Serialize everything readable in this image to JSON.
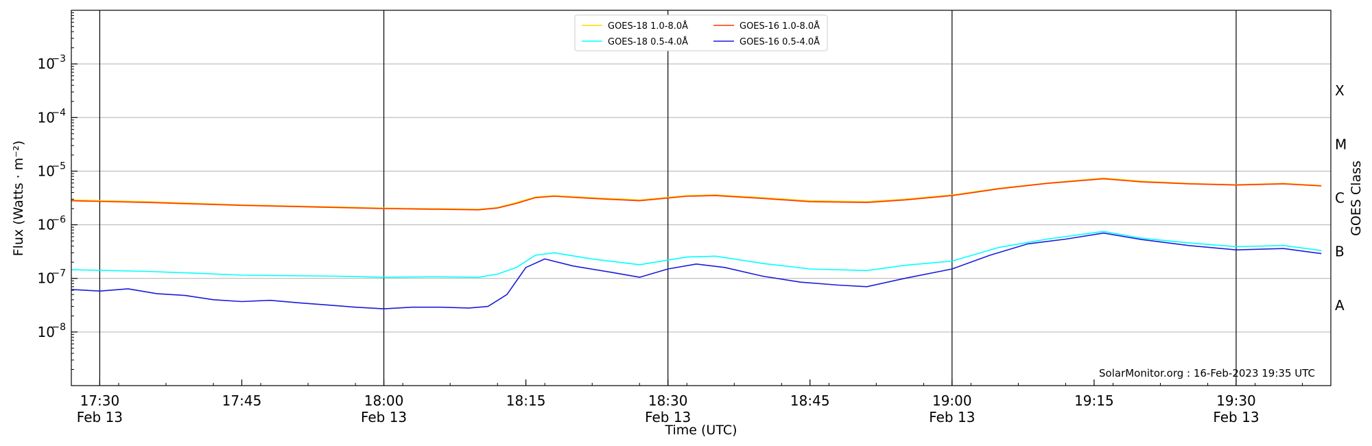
{
  "chart_data": {
    "type": "line",
    "xlabel": "Time (UTC)",
    "ylabel": "Flux (Watts · m⁻²)",
    "right_label": "GOES Class",
    "y_scale": "log",
    "ylim": [
      1e-09,
      0.01
    ],
    "xlim": [
      "2023-02-13T17:27",
      "2023-02-13T19:40"
    ],
    "y_ticks": [
      {
        "value": 1e-08,
        "base": "10",
        "exp": "−8"
      },
      {
        "value": 1e-07,
        "base": "10",
        "exp": "−7"
      },
      {
        "value": 1e-06,
        "base": "10",
        "exp": "−6"
      },
      {
        "value": 1e-05,
        "base": "10",
        "exp": "−5"
      },
      {
        "value": 0.0001,
        "base": "10",
        "exp": "−4"
      },
      {
        "value": 0.001,
        "base": "10",
        "exp": "−3"
      }
    ],
    "x_ticks": [
      {
        "time": "2023-02-13T17:30",
        "label": "17:30",
        "sublabel": "Feb 13",
        "vline": true
      },
      {
        "time": "2023-02-13T17:45",
        "label": "17:45",
        "sublabel": "",
        "vline": false
      },
      {
        "time": "2023-02-13T18:00",
        "label": "18:00",
        "sublabel": "Feb 13",
        "vline": true
      },
      {
        "time": "2023-02-13T18:15",
        "label": "18:15",
        "sublabel": "",
        "vline": false
      },
      {
        "time": "2023-02-13T18:30",
        "label": "18:30",
        "sublabel": "Feb 13",
        "vline": true
      },
      {
        "time": "2023-02-13T18:45",
        "label": "18:45",
        "sublabel": "",
        "vline": false
      },
      {
        "time": "2023-02-13T19:00",
        "label": "19:00",
        "sublabel": "Feb 13",
        "vline": true
      },
      {
        "time": "2023-02-13T19:15",
        "label": "19:15",
        "sublabel": "",
        "vline": false
      },
      {
        "time": "2023-02-13T19:30",
        "label": "19:30",
        "sublabel": "Feb 13",
        "vline": true
      }
    ],
    "goes_classes": [
      {
        "label": "A",
        "value": 3.16e-08
      },
      {
        "label": "B",
        "value": 3.16e-07
      },
      {
        "label": "C",
        "value": 3.16e-06
      },
      {
        "label": "M",
        "value": 3.16e-05
      },
      {
        "label": "X",
        "value": 0.000316
      }
    ],
    "grid": true,
    "legend_position": "top-center",
    "annotation": "SolarMonitor.org : 16-Feb-2023 19:35 UTC",
    "series": [
      {
        "name": "GOES-18 1.0-8.0Å",
        "color": "#ffd700",
        "x": [
          "2023-02-13T17:27",
          "2023-02-13T17:35",
          "2023-02-13T17:45",
          "2023-02-13T17:55",
          "2023-02-13T18:00",
          "2023-02-13T18:05",
          "2023-02-13T18:10",
          "2023-02-13T18:12",
          "2023-02-13T18:14",
          "2023-02-13T18:16",
          "2023-02-13T18:18",
          "2023-02-13T18:22",
          "2023-02-13T18:27",
          "2023-02-13T18:32",
          "2023-02-13T18:35",
          "2023-02-13T18:40",
          "2023-02-13T18:45",
          "2023-02-13T18:51",
          "2023-02-13T18:55",
          "2023-02-13T19:00",
          "2023-02-13T19:05",
          "2023-02-13T19:10",
          "2023-02-13T19:16",
          "2023-02-13T19:20",
          "2023-02-13T19:25",
          "2023-02-13T19:30",
          "2023-02-13T19:35",
          "2023-02-13T19:39"
        ],
        "y": [
          2.9e-06,
          2.7e-06,
          2.35e-06,
          2.15e-06,
          2.05e-06,
          2e-06,
          1.95e-06,
          2.1e-06,
          2.6e-06,
          3.3e-06,
          3.5e-06,
          3.2e-06,
          2.9e-06,
          3.5e-06,
          3.6e-06,
          3.2e-06,
          2.8e-06,
          2.7e-06,
          3e-06,
          3.6e-06,
          4.8e-06,
          6e-06,
          7.4e-06,
          6.5e-06,
          5.9e-06,
          5.6e-06,
          5.9e-06,
          5.4e-06
        ]
      },
      {
        "name": "GOES-18 0.5-4.0Å",
        "color": "#00ffff",
        "x": [
          "2023-02-13T17:27",
          "2023-02-13T17:35",
          "2023-02-13T17:40",
          "2023-02-13T17:45",
          "2023-02-13T17:55",
          "2023-02-13T18:00",
          "2023-02-13T18:05",
          "2023-02-13T18:10",
          "2023-02-13T18:12",
          "2023-02-13T18:14",
          "2023-02-13T18:16",
          "2023-02-13T18:18",
          "2023-02-13T18:22",
          "2023-02-13T18:27",
          "2023-02-13T18:32",
          "2023-02-13T18:35",
          "2023-02-13T18:40",
          "2023-02-13T18:45",
          "2023-02-13T18:51",
          "2023-02-13T18:55",
          "2023-02-13T19:00",
          "2023-02-13T19:05",
          "2023-02-13T19:10",
          "2023-02-13T19:16",
          "2023-02-13T19:20",
          "2023-02-13T19:25",
          "2023-02-13T19:30",
          "2023-02-13T19:35",
          "2023-02-13T19:39"
        ],
        "y": [
          1.45e-07,
          1.35e-07,
          1.25e-07,
          1.15e-07,
          1.1e-07,
          1.05e-07,
          1.07e-07,
          1.05e-07,
          1.2e-07,
          1.6e-07,
          2.7e-07,
          3e-07,
          2.3e-07,
          1.8e-07,
          2.5e-07,
          2.6e-07,
          1.9e-07,
          1.5e-07,
          1.4e-07,
          1.75e-07,
          2.1e-07,
          3.8e-07,
          5.4e-07,
          7.5e-07,
          5.6e-07,
          4.6e-07,
          3.9e-07,
          4.1e-07,
          3.3e-07
        ]
      },
      {
        "name": "GOES-16 1.0-8.0Å",
        "color": "#ff3300",
        "x": [
          "2023-02-13T17:27",
          "2023-02-13T17:35",
          "2023-02-13T17:45",
          "2023-02-13T17:55",
          "2023-02-13T18:00",
          "2023-02-13T18:05",
          "2023-02-13T18:10",
          "2023-02-13T18:12",
          "2023-02-13T18:14",
          "2023-02-13T18:16",
          "2023-02-13T18:18",
          "2023-02-13T18:22",
          "2023-02-13T18:27",
          "2023-02-13T18:32",
          "2023-02-13T18:35",
          "2023-02-13T18:40",
          "2023-02-13T18:45",
          "2023-02-13T18:51",
          "2023-02-13T18:55",
          "2023-02-13T19:00",
          "2023-02-13T19:05",
          "2023-02-13T19:10",
          "2023-02-13T19:16",
          "2023-02-13T19:20",
          "2023-02-13T19:25",
          "2023-02-13T19:30",
          "2023-02-13T19:35",
          "2023-02-13T19:39"
        ],
        "y": [
          2.8e-06,
          2.6e-06,
          2.3e-06,
          2.1e-06,
          2e-06,
          1.95e-06,
          1.9e-06,
          2.05e-06,
          2.5e-06,
          3.2e-06,
          3.4e-06,
          3.1e-06,
          2.8e-06,
          3.4e-06,
          3.5e-06,
          3.1e-06,
          2.7e-06,
          2.6e-06,
          2.9e-06,
          3.5e-06,
          4.7e-06,
          5.9e-06,
          7.2e-06,
          6.3e-06,
          5.8e-06,
          5.5e-06,
          5.8e-06,
          5.3e-06
        ]
      },
      {
        "name": "GOES-16 0.5-4.0Å",
        "color": "#1a1adc",
        "x": [
          "2023-02-13T17:27",
          "2023-02-13T17:30",
          "2023-02-13T17:33",
          "2023-02-13T17:36",
          "2023-02-13T17:39",
          "2023-02-13T17:42",
          "2023-02-13T17:45",
          "2023-02-13T17:48",
          "2023-02-13T17:51",
          "2023-02-13T17:54",
          "2023-02-13T17:57",
          "2023-02-13T18:00",
          "2023-02-13T18:03",
          "2023-02-13T18:06",
          "2023-02-13T18:09",
          "2023-02-13T18:11",
          "2023-02-13T18:13",
          "2023-02-13T18:15",
          "2023-02-13T18:17",
          "2023-02-13T18:20",
          "2023-02-13T18:24",
          "2023-02-13T18:27",
          "2023-02-13T18:30",
          "2023-02-13T18:33",
          "2023-02-13T18:36",
          "2023-02-13T18:40",
          "2023-02-13T18:44",
          "2023-02-13T18:48",
          "2023-02-13T18:51",
          "2023-02-13T18:55",
          "2023-02-13T19:00",
          "2023-02-13T19:04",
          "2023-02-13T19:08",
          "2023-02-13T19:12",
          "2023-02-13T19:16",
          "2023-02-13T19:20",
          "2023-02-13T19:25",
          "2023-02-13T19:30",
          "2023-02-13T19:35",
          "2023-02-13T19:39"
        ],
        "y": [
          6.2e-08,
          5.8e-08,
          6.4e-08,
          5.2e-08,
          4.8e-08,
          4e-08,
          3.7e-08,
          3.9e-08,
          3.5e-08,
          3.2e-08,
          2.9e-08,
          2.7e-08,
          2.9e-08,
          2.9e-08,
          2.8e-08,
          3e-08,
          5e-08,
          1.6e-07,
          2.3e-07,
          1.7e-07,
          1.3e-07,
          1.05e-07,
          1.5e-07,
          1.85e-07,
          1.6e-07,
          1.1e-07,
          8.5e-08,
          7.5e-08,
          7e-08,
          1e-07,
          1.5e-07,
          2.7e-07,
          4.4e-07,
          5.4e-07,
          7e-07,
          5.3e-07,
          4.1e-07,
          3.4e-07,
          3.6e-07,
          2.9e-07
        ]
      }
    ]
  }
}
